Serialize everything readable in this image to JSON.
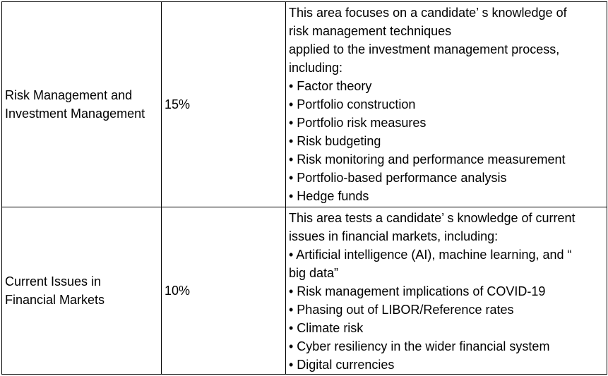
{
  "table": {
    "rows": [
      {
        "area": [
          "Risk Management and",
          "Investment Management"
        ],
        "weight": "15%",
        "description": [
          "This area focuses on a candidate’ s knowledge of",
          "risk management techniques",
          "applied to the investment management process,",
          "including:",
          "• Factor theory",
          "• Portfolio construction",
          "• Portfolio risk measures",
          "• Risk budgeting",
          "• Risk monitoring and performance measurement",
          "• Portfolio-based performance analysis",
          "• Hedge funds"
        ]
      },
      {
        "area": [
          "Current Issues in",
          "Financial Markets"
        ],
        "weight": "10%",
        "description": [
          "This area tests a candidate’ s knowledge of current",
          "issues in financial markets, including:",
          "• Artificial intelligence (AI), machine learning, and “",
          "big data”",
          "• Risk management implications of COVID-19",
          "• Phasing out of LIBOR/Reference rates",
          "• Climate risk",
          "• Cyber resiliency in the wider financial system",
          "• Digital currencies"
        ]
      }
    ]
  }
}
